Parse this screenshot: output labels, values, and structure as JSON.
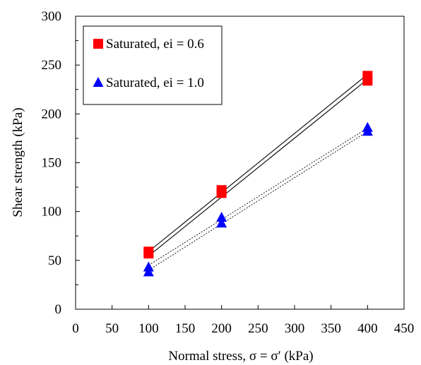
{
  "chart_data": {
    "type": "scatter",
    "title": "",
    "xlabel": "Normal stress, σ = σ′ (kPa)",
    "ylabel": "Shear strength (kPa)",
    "xlim": [
      0,
      450
    ],
    "ylim": [
      0,
      300
    ],
    "x_ticks": [
      "0",
      "50",
      "100",
      "150",
      "200",
      "250",
      "300",
      "350",
      "400",
      "450"
    ],
    "y_ticks": [
      "0",
      "50",
      "100",
      "150",
      "200",
      "250",
      "300"
    ],
    "grid": false,
    "legend_position": "top-left",
    "series": [
      {
        "name": "Saturated, ei = 0.6",
        "marker": "square",
        "color": "#ff0000",
        "line_style": "solid",
        "points": [
          {
            "x": 100,
            "y": 57
          },
          {
            "x": 100,
            "y": 59
          },
          {
            "x": 200,
            "y": 119
          },
          {
            "x": 200,
            "y": 122
          },
          {
            "x": 400,
            "y": 234
          },
          {
            "x": 400,
            "y": 239
          }
        ],
        "fit_lines": [
          {
            "x": [
              100,
              400
            ],
            "y": [
              54.5,
              235.5
            ]
          },
          {
            "x": [
              100,
              400
            ],
            "y": [
              59,
              240.5
            ]
          }
        ]
      },
      {
        "name": "Saturated, ei = 1.0",
        "marker": "triangle",
        "color": "#0000ff",
        "line_style": "dotted",
        "points": [
          {
            "x": 100,
            "y": 38
          },
          {
            "x": 100,
            "y": 43
          },
          {
            "x": 200,
            "y": 88
          },
          {
            "x": 200,
            "y": 94
          },
          {
            "x": 400,
            "y": 182
          },
          {
            "x": 400,
            "y": 186
          }
        ],
        "fit_lines": [
          {
            "x": [
              100,
              400
            ],
            "y": [
              40,
              182
            ]
          },
          {
            "x": [
              100,
              400
            ],
            "y": [
              45,
              185.5
            ]
          }
        ]
      }
    ]
  }
}
